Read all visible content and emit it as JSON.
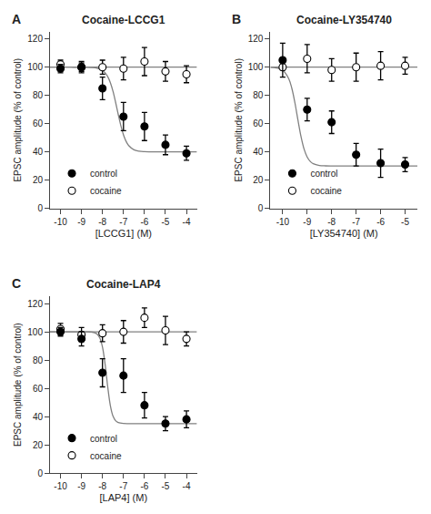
{
  "chart_data": [
    {
      "type": "scatter",
      "title": "Cocaine-LCCG1",
      "x_label": "[LCCG1] (M)",
      "y_label": "EPSC amplitude (% of control)",
      "xlim": [
        -10.5,
        -3.5
      ],
      "xticks": [
        -10,
        -9,
        -8,
        -7,
        -6,
        -5,
        -4
      ],
      "ylim": [
        0,
        125
      ],
      "yticks": [
        0,
        20,
        40,
        60,
        80,
        100,
        120
      ],
      "grid": false,
      "legend": "lower left",
      "annotations": [
        "A"
      ],
      "series": [
        {
          "type": "line",
          "color": "#808080",
          "x": [
            -10.5,
            -10.25,
            -10,
            -9.75,
            -9.5,
            -9.25,
            -9,
            -8.75,
            -8.5,
            -8.25,
            -8,
            -7.875,
            -7.75,
            -7.625,
            -7.5,
            -7.375,
            -7.25,
            -7.125,
            -7,
            -6.875,
            -6.75,
            -6.5,
            -6.25,
            -6,
            -5.75,
            -5.5,
            -5.25,
            -5,
            -4.75,
            -4.5,
            -4.25,
            -4,
            -3.75,
            -3.5
          ],
          "values": [
            100,
            100,
            100,
            100,
            100,
            99.99,
            99.98,
            99.92,
            99.76,
            99.25,
            97.7,
            96.03,
            93.29,
            89.02,
            82.92,
            75.13,
            66.56,
            58.53,
            52.05,
            47.43,
            44.42,
            41.47,
            40.47,
            40.15,
            40.05,
            40.02,
            40,
            40,
            40,
            40,
            40,
            40,
            40,
            40
          ]
        },
        {
          "type": "line",
          "color": "#808080",
          "x": [
            -10.5,
            -3.5
          ],
          "values": [
            100,
            100
          ]
        },
        {
          "type": "scatter",
          "name": "cocaine",
          "marker": "open circle",
          "color": "#000000",
          "x": [
            -10,
            -9,
            -8,
            -7,
            -6,
            -5,
            -4
          ],
          "values": [
            102,
            100,
            100,
            99,
            104,
            97,
            95
          ],
          "yerr": [
            3,
            4,
            5,
            8,
            10,
            7,
            6
          ]
        },
        {
          "type": "scatter",
          "name": "control",
          "marker": "filled circle",
          "color": "#000000",
          "x": [
            -10,
            -9,
            -8,
            -7,
            -6,
            -5,
            -4
          ],
          "values": [
            99,
            100,
            85,
            65,
            58,
            45,
            39
          ],
          "yerr": [
            3,
            3,
            8,
            10,
            10,
            7,
            5
          ]
        }
      ]
    },
    {
      "type": "scatter",
      "title": "Cocaine-LY354740",
      "x_label": "[LY354740] (M)",
      "y_label": "EPSC amplitude (% of control)",
      "xlim": [
        -10.5,
        -4.5
      ],
      "xticks": [
        -10,
        -9,
        -8,
        -7,
        -6,
        -5
      ],
      "ylim": [
        0,
        125
      ],
      "yticks": [
        0,
        20,
        40,
        60,
        80,
        100,
        120
      ],
      "grid": false,
      "legend": "lower left",
      "annotations": [
        "B"
      ],
      "series": [
        {
          "type": "line",
          "color": "#808080",
          "x": [
            -10.5,
            -10.25,
            -10,
            -9.75,
            -9.625,
            -9.5,
            -9.375,
            -9.25,
            -9.125,
            -9,
            -8.875,
            -8.75,
            -8.5,
            -8.25,
            -8,
            -7.75,
            -7.5,
            -7.25,
            -7,
            -6.75,
            -6.5,
            -6.25,
            -6,
            -5.75,
            -5.5,
            -5.25,
            -5,
            -4.75,
            -4.5
          ],
          "values": [
            99.88,
            99.48,
            97.85,
            91.76,
            84.95,
            74.8,
            62.49,
            50.76,
            41.93,
            36.36,
            33.25,
            31.62,
            30.39,
            30.09,
            30.02,
            30.01,
            30,
            30,
            30,
            30,
            30,
            30,
            30,
            30,
            30,
            30,
            30,
            30,
            30
          ]
        },
        {
          "type": "line",
          "color": "#808080",
          "x": [
            -10.5,
            -4.5
          ],
          "values": [
            100,
            100
          ]
        },
        {
          "type": "scatter",
          "name": "cocaine",
          "marker": "open circle",
          "color": "#000000",
          "x": [
            -10,
            -9,
            -8,
            -7,
            -6,
            -5
          ],
          "values": [
            100,
            106,
            98,
            100,
            101,
            101
          ],
          "yerr": [
            2,
            10,
            8,
            10,
            10,
            6
          ]
        },
        {
          "type": "scatter",
          "name": "control",
          "marker": "filled circle",
          "color": "#000000",
          "x": [
            -10,
            -9,
            -8,
            -7,
            -6,
            -5
          ],
          "values": [
            105,
            70,
            61,
            38,
            32,
            31
          ],
          "yerr": [
            12,
            8,
            8,
            8,
            10,
            5
          ]
        }
      ]
    },
    {
      "type": "scatter",
      "title": "Cocaine-LAP4",
      "x_label": "[LAP4] (M)",
      "y_label": "EPSC amplitude (% of control)",
      "xlim": [
        -10.5,
        -3.5
      ],
      "xticks": [
        -10,
        -9,
        -8,
        -7,
        -6,
        -5,
        -4
      ],
      "ylim": [
        0,
        125
      ],
      "yticks": [
        0,
        20,
        40,
        60,
        80,
        100,
        120
      ],
      "grid": false,
      "legend": "lower left",
      "annotations": [
        "C"
      ],
      "series": [
        {
          "type": "line",
          "color": "#808080",
          "x": [
            -10.5,
            -10.25,
            -10,
            -9.75,
            -9.5,
            -9.25,
            -9,
            -8.75,
            -8.625,
            -8.5,
            -8.375,
            -8.25,
            -8.125,
            -8,
            -7.875,
            -7.75,
            -7.625,
            -7.5,
            -7.375,
            -7.25,
            -7,
            -6.75,
            -6.5,
            -6.25,
            -6,
            -5.75,
            -5.5,
            -5.25,
            -5,
            -4.75,
            -4.5,
            -4.25,
            -4,
            -3.75,
            -3.5
          ],
          "values": [
            100,
            100,
            100,
            100,
            100,
            100,
            100,
            99.97,
            99.92,
            99.77,
            99.37,
            98.32,
            95.59,
            89.19,
            77.03,
            61.04,
            47.75,
            40.32,
            37.05,
            35.76,
            35.1,
            35.01,
            35,
            35,
            35,
            35,
            35,
            35,
            35,
            35,
            35,
            35,
            35,
            35,
            35
          ]
        },
        {
          "type": "line",
          "color": "#808080",
          "x": [
            -10.5,
            -3.5
          ],
          "values": [
            100,
            100
          ]
        },
        {
          "type": "scatter",
          "name": "cocaine",
          "marker": "open circle",
          "color": "#000000",
          "x": [
            -10,
            -9,
            -8,
            -7,
            -6,
            -5,
            -4
          ],
          "values": [
            102,
            98,
            99,
            100,
            110,
            101,
            95
          ],
          "yerr": [
            4,
            5,
            6,
            8,
            7,
            10,
            5
          ]
        },
        {
          "type": "scatter",
          "name": "control",
          "marker": "filled circle",
          "color": "#000000",
          "x": [
            -10,
            -9,
            -8,
            -7,
            -6,
            -5,
            -4
          ],
          "values": [
            100,
            95,
            71,
            69,
            48,
            35,
            38
          ],
          "yerr": [
            3,
            5,
            10,
            12,
            9,
            5,
            6
          ]
        }
      ]
    }
  ]
}
